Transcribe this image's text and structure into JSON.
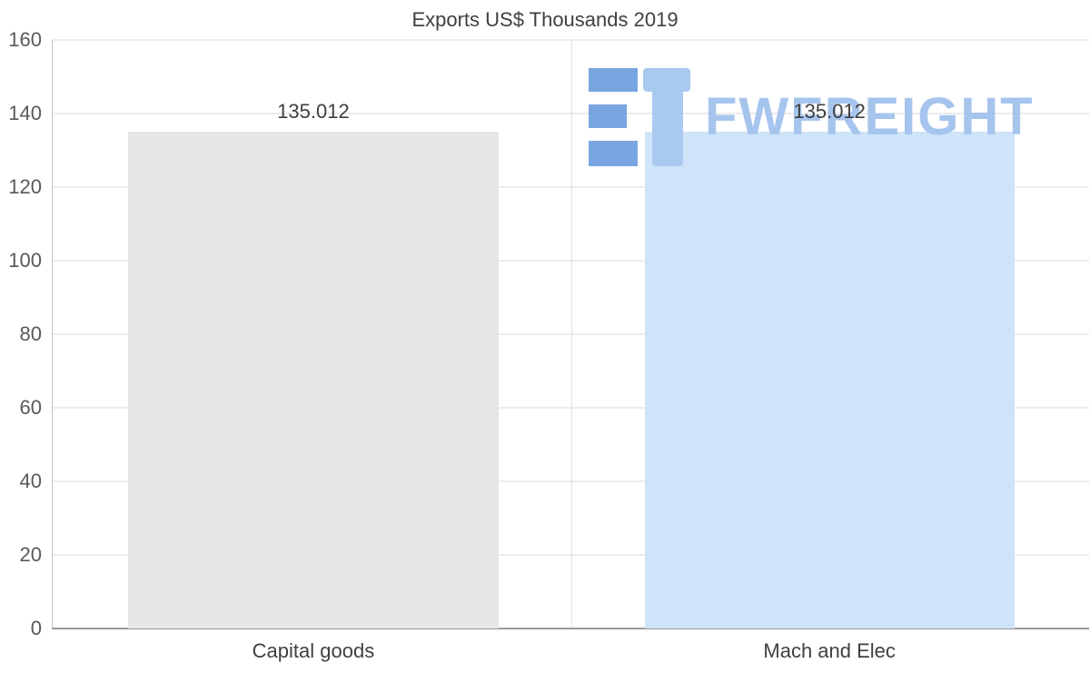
{
  "chart_data": {
    "type": "bar",
    "title": "Exports US$ Thousands 2019",
    "categories": [
      "Capital goods",
      "Mach and Elec"
    ],
    "values": [
      135.012,
      135.012
    ],
    "value_labels": [
      "135.012",
      "135.012"
    ],
    "bar_colors": [
      "#e6e6e6",
      "#cfe3f9"
    ],
    "xlabel": "",
    "ylabel": "",
    "ylim": [
      0,
      160
    ],
    "yticks": [
      0,
      20,
      40,
      60,
      80,
      100,
      120,
      140,
      160
    ],
    "grid": true,
    "legend": "none"
  },
  "watermark": {
    "text": "FWFREIGHT",
    "text_color": "#a6c5ee",
    "icon_dark": "#79a6e1",
    "icon_light": "#a9c9ef"
  }
}
